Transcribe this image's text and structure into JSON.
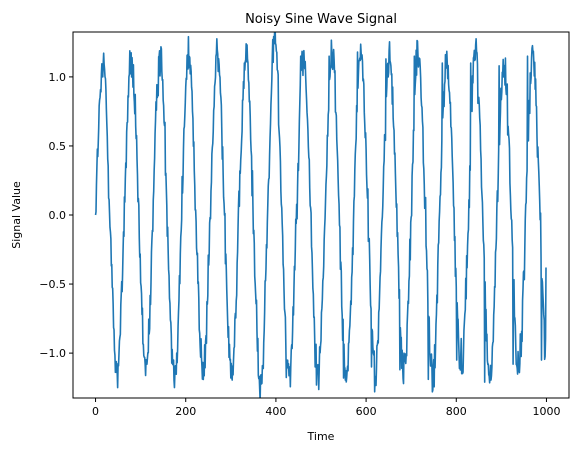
{
  "chart_data": {
    "type": "line",
    "title": "Noisy Sine Wave Signal",
    "xlabel": "Time",
    "ylabel": "Signal Value",
    "xlim": [
      -50,
      1050
    ],
    "ylim": [
      -1.325,
      1.325
    ],
    "xticks": [
      0,
      200,
      400,
      600,
      800,
      1000
    ],
    "xtick_labels": [
      "0",
      "200",
      "400",
      "600",
      "800",
      "1000"
    ],
    "yticks": [
      -1.0,
      -0.5,
      0.0,
      0.5,
      1.0
    ],
    "ytick_labels": [
      "−1.0",
      "−0.5",
      "0.0",
      "0.5",
      "1.0"
    ],
    "grid": false,
    "series": [
      {
        "color": "#1f77b4",
        "x_start": 0,
        "x_step": 1,
        "points": 1000,
        "base_period": 63.6,
        "amplitude": 1.0,
        "noise_std": 0.1,
        "peaks": [
          {
            "x": 16,
            "y": 1.0
          },
          {
            "x": 78,
            "y": 1.05
          },
          {
            "x": 141,
            "y": 1.15
          },
          {
            "x": 204,
            "y": 1.16
          },
          {
            "x": 267,
            "y": 1.15
          },
          {
            "x": 330,
            "y": 1.1
          },
          {
            "x": 393,
            "y": 1.27
          },
          {
            "x": 455,
            "y": 1.15
          },
          {
            "x": 518,
            "y": 1.15
          },
          {
            "x": 581,
            "y": 1.18
          },
          {
            "x": 644,
            "y": 1.13
          },
          {
            "x": 707,
            "y": 1.15
          },
          {
            "x": 769,
            "y": 1.1
          },
          {
            "x": 832,
            "y": 1.1
          },
          {
            "x": 895,
            "y": 1.08
          },
          {
            "x": 958,
            "y": 1.15
          }
        ],
        "troughs": [
          {
            "x": 47,
            "y": -1.14
          },
          {
            "x": 110,
            "y": -1.08
          },
          {
            "x": 173,
            "y": -1.05
          },
          {
            "x": 236,
            "y": -1.1
          },
          {
            "x": 298,
            "y": -1.05
          },
          {
            "x": 361,
            "y": -1.16
          },
          {
            "x": 424,
            "y": -1.05
          },
          {
            "x": 487,
            "y": -1.1
          },
          {
            "x": 550,
            "y": -1.18
          },
          {
            "x": 612,
            "y": -1.1
          },
          {
            "x": 675,
            "y": -1.12
          },
          {
            "x": 738,
            "y": -1.19
          },
          {
            "x": 801,
            "y": -1.05
          },
          {
            "x": 863,
            "y": -1.21
          },
          {
            "x": 926,
            "y": -1.08
          },
          {
            "x": 989,
            "y": -1.05
          }
        ],
        "end_value": -0.38
      }
    ]
  }
}
